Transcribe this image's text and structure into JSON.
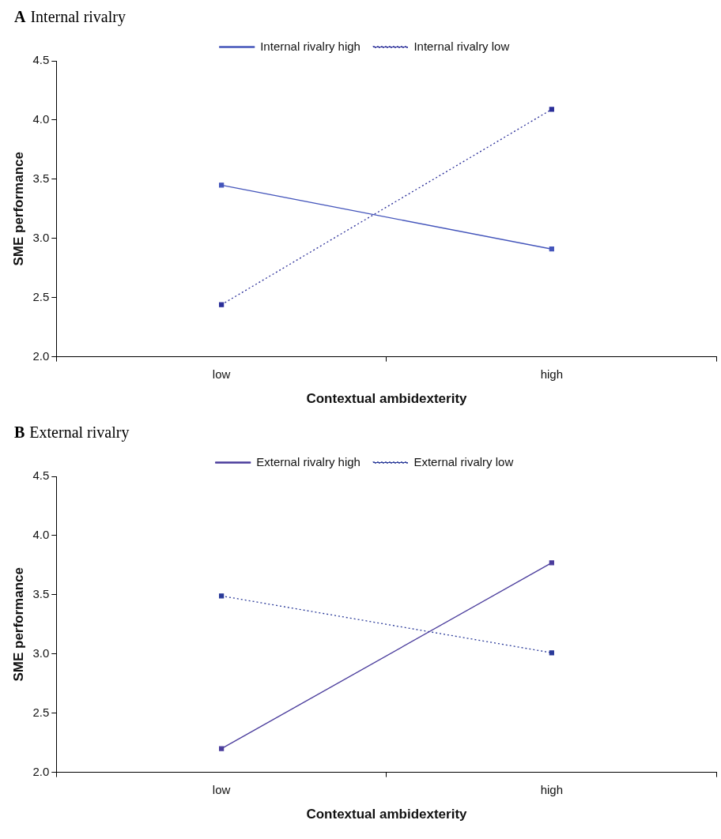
{
  "chart_data": [
    {
      "type": "line",
      "title": "A Internal rivalry",
      "categories": [
        "low",
        "high"
      ],
      "xlabel": "Contextual ambidexterity",
      "ylabel": "SME performance",
      "ylim": [
        2,
        4.5
      ],
      "yticks": [
        {
          "value": 2,
          "label": "2.0"
        },
        {
          "value": 2.5,
          "label": "2.5"
        },
        {
          "value": 3,
          "label": "3.0"
        },
        {
          "value": 3.5,
          "label": "3.5"
        },
        {
          "value": 4,
          "label": "4.0"
        },
        {
          "value": 4.5,
          "label": "4.5"
        }
      ],
      "grid": false,
      "legend": "top",
      "marker": "square",
      "series": [
        {
          "name": "Internal rivalry high",
          "color": "#4455bb",
          "line_style": "solid",
          "values": [
            3.45,
            2.91
          ]
        },
        {
          "name": "Internal rivalry low",
          "color": "#2b2f99",
          "line_style": "dotted",
          "values": [
            2.44,
            4.09
          ]
        }
      ]
    },
    {
      "type": "line",
      "title": "B External rivalry",
      "categories": [
        "low",
        "high"
      ],
      "xlabel": "Contextual ambidexterity",
      "ylabel": "SME performance",
      "ylim": [
        2,
        4.5
      ],
      "yticks": [
        {
          "value": 2,
          "label": "2.0"
        },
        {
          "value": 2.5,
          "label": "2.5"
        },
        {
          "value": 3,
          "label": "3.0"
        },
        {
          "value": 3.5,
          "label": "3.5"
        },
        {
          "value": 4,
          "label": "4.0"
        },
        {
          "value": 4.5,
          "label": "4.5"
        }
      ],
      "grid": false,
      "legend": "top",
      "marker": "square",
      "series": [
        {
          "name": "External rivalry high",
          "color": "#4a3c9c",
          "line_style": "solid",
          "values": [
            2.2,
            3.77
          ]
        },
        {
          "name": "External rivalry low",
          "color": "#2a3a99",
          "line_style": "dotted",
          "values": [
            3.49,
            3.01
          ]
        }
      ]
    }
  ]
}
